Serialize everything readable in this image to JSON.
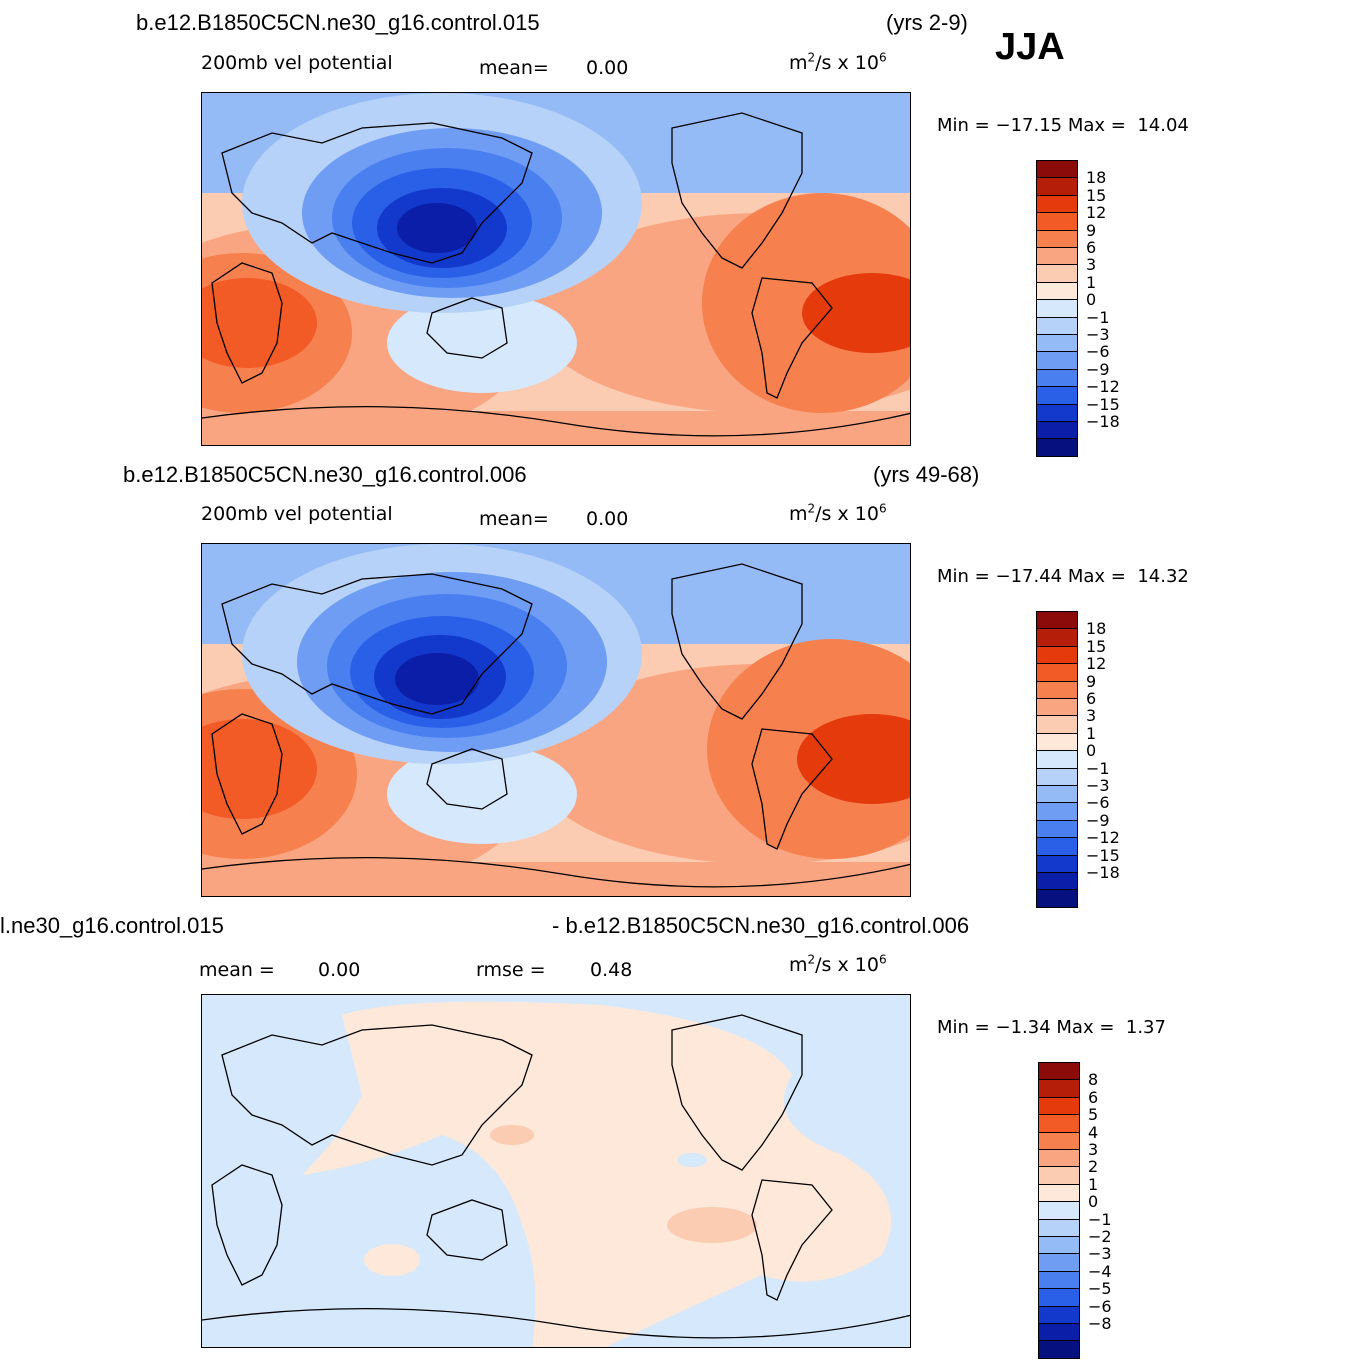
{
  "season": "JJA",
  "palette": {
    "pos": [
      "#8b0a0a",
      "#b51f0a",
      "#e43a0c",
      "#f25a26",
      "#f7804f",
      "#f9a581",
      "#fbcbb2",
      "#fde8d9"
    ],
    "neg": [
      "#d6e8fb",
      "#b7d2f8",
      "#94bbf6",
      "#6f9df3",
      "#4a7ff0",
      "#2a5fe8",
      "#1339cc",
      "#0b1ea8",
      "#06107e"
    ]
  },
  "panels": [
    {
      "case_left": "b.e12.B1850C5CN.ne30_g16.control.015",
      "case_right": "(yrs 2-9)",
      "variable": "200mb vel potential",
      "stat1_label": "mean=",
      "stat1_value": "0.00",
      "stat2_label": "",
      "stat2_value": "",
      "units_main": "m",
      "units_mid": "/s x 10",
      "units_sup1": "2",
      "units_sup2": "6",
      "min_label": "Min =",
      "min_value": "−17.15",
      "max_label": "Max =",
      "max_value": "14.04",
      "levels": [
        "18",
        "15",
        "12",
        "9",
        "6",
        "3",
        "1",
        "0",
        "−1",
        "−3",
        "−6",
        "−9",
        "−12",
        "−15",
        "−18"
      ]
    },
    {
      "case_left": "b.e12.B1850C5CN.ne30_g16.control.006",
      "case_right": "(yrs 49-68)",
      "variable": "200mb vel potential",
      "stat1_label": "mean=",
      "stat1_value": "0.00",
      "stat2_label": "",
      "stat2_value": "",
      "units_main": "m",
      "units_mid": "/s x 10",
      "units_sup1": "2",
      "units_sup2": "6",
      "min_label": "Min =",
      "min_value": "−17.44",
      "max_label": "Max =",
      "max_value": "14.32",
      "levels": [
        "18",
        "15",
        "12",
        "9",
        "6",
        "3",
        "1",
        "0",
        "−1",
        "−3",
        "−6",
        "−9",
        "−12",
        "−15",
        "−18"
      ]
    },
    {
      "case_left": "l.ne30_g16.control.015",
      "case_right": "- b.e12.B1850C5CN.ne30_g16.control.006",
      "variable": "",
      "stat1_label": "mean =",
      "stat1_value": "0.00",
      "stat2_label": "rmse =",
      "stat2_value": "0.48",
      "units_main": "m",
      "units_mid": "/s x 10",
      "units_sup1": "2",
      "units_sup2": "6",
      "min_label": "Min =",
      "min_value": "−1.34",
      "max_label": "Max =",
      "max_value": "1.37",
      "levels": [
        "8",
        "6",
        "5",
        "4",
        "3",
        "2",
        "1",
        "0",
        "−1",
        "−2",
        "−3",
        "−4",
        "−5",
        "−6",
        "−8"
      ]
    }
  ]
}
